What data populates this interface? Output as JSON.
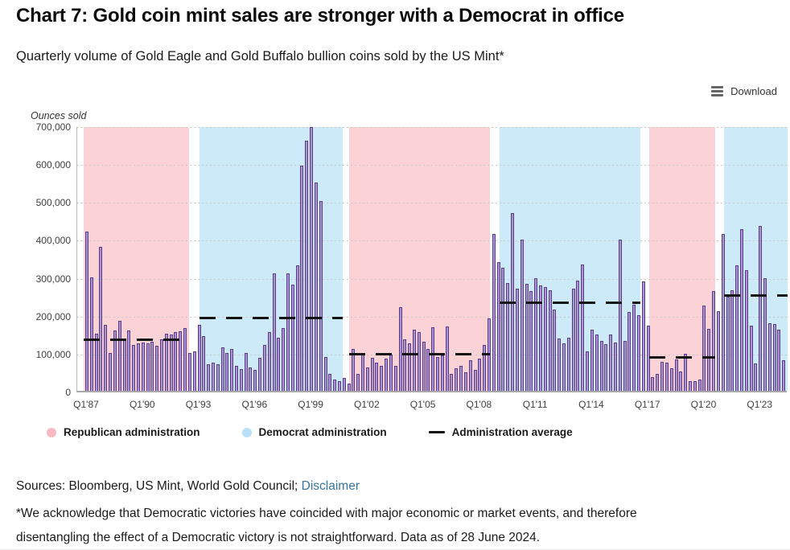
{
  "toolbar": {
    "download_label": "Download"
  },
  "footer": {
    "sources_prefix": "Sources: Bloomberg, US Mint, World Gold Council; ",
    "disclaimer_label": "Disclaimer",
    "footnote_line1": "*We acknowledge that Democratic victories have coincided with major economic or market events, and therefore",
    "footnote_line2": "disentangling the effect of a Democratic victory is not straightforward. Data as of 28 June 2024."
  },
  "chart_data": {
    "type": "bar",
    "title": "Chart 7: Gold coin mint sales are stronger with a Democrat in office",
    "subtitle": "Quarterly volume of Gold Eagle and Gold Buffalo bullion coins sold by the US Mint*",
    "ylabel": "Ounces sold",
    "ylim": [
      0,
      700000
    ],
    "ytick_step": 100000,
    "ytick_labels": [
      "0",
      "100,000",
      "200,000",
      "300,000",
      "400,000",
      "500,000",
      "600,000",
      "700,000"
    ],
    "xtick_labels": [
      "Q1'87",
      "Q1'90",
      "Q1'93",
      "Q1'96",
      "Q1'99",
      "Q1'02",
      "Q1'05",
      "Q1'08",
      "Q1'11",
      "Q1'14",
      "Q1'17",
      "Q1'20",
      "Q1'23"
    ],
    "xtick_every_quarters": 12,
    "start_label": "Q1'87",
    "end_label": "Q2'24",
    "grid": true,
    "legend_position": "bottom",
    "bar_color": "#a795cb",
    "bar_border_color": "#5d3b8c",
    "band_colors": {
      "Republican": "#fbd2d6",
      "Democrat": "#cdeaf8"
    },
    "values": [
      420000,
      300000,
      150000,
      380000,
      173000,
      100000,
      160000,
      185000,
      135000,
      160000,
      120000,
      125000,
      128000,
      125000,
      130000,
      118000,
      135000,
      150000,
      148000,
      155000,
      158000,
      165000,
      100000,
      105000,
      175000,
      145000,
      70000,
      75000,
      70000,
      115000,
      100000,
      110000,
      65000,
      58000,
      100000,
      62000,
      55000,
      88000,
      120000,
      155000,
      310000,
      140000,
      165000,
      310000,
      280000,
      330000,
      595000,
      660000,
      695000,
      550000,
      500000,
      90000,
      45000,
      30000,
      25000,
      35000,
      20000,
      110000,
      45000,
      95000,
      62000,
      88000,
      75000,
      65000,
      85000,
      95000,
      65000,
      220000,
      135000,
      125000,
      162000,
      155000,
      130000,
      110000,
      168000,
      89000,
      93000,
      170000,
      45000,
      60000,
      65000,
      48000,
      80000,
      55000,
      85000,
      120000,
      190000,
      413000,
      340000,
      325000,
      285000,
      468000,
      270000,
      398000,
      283000,
      263000,
      298000,
      277000,
      274000,
      265000,
      214000,
      137000,
      126000,
      139000,
      270000,
      291000,
      334000,
      105000,
      161000,
      148000,
      131000,
      124000,
      148000,
      127000,
      398000,
      131000,
      208000,
      226000,
      199000,
      289000,
      172000,
      37000,
      45000,
      77000,
      75000,
      60000,
      83000,
      51000,
      98000,
      26000,
      25000,
      30000,
      224000,
      163000,
      263000,
      210000,
      413000,
      248000,
      265000,
      331000,
      427000,
      318000,
      171000,
      73000,
      434000,
      296000,
      178000,
      176000,
      162000,
      80000
    ],
    "eras": [
      {
        "party": "Republican",
        "quarters": "Q1'87-Q4'92",
        "from_idx": -0.7,
        "to_idx": 21.8,
        "average": 140000
      },
      {
        "party": "Democrat",
        "quarters": "Q1'93-Q4'00",
        "from_idx": 24.0,
        "to_idx": 54.7,
        "average": 197000
      },
      {
        "party": "Republican",
        "quarters": "Q1'01-Q4'08",
        "from_idx": 56.1,
        "to_idx": 86.1,
        "average": 100000
      },
      {
        "party": "Democrat",
        "quarters": "Q1'09-Q4'16",
        "from_idx": 88.2,
        "to_idx": 118.3,
        "average": 237000
      },
      {
        "party": "Republican",
        "quarters": "Q1'17-Q3'20",
        "from_idx": 120.2,
        "to_idx": 134.3,
        "average": 92000
      },
      {
        "party": "Democrat",
        "quarters": "Q1'21-Q2'24",
        "from_idx": 136.2,
        "to_idx": 149.9,
        "average": 255000
      }
    ],
    "legend": [
      {
        "label": "Republican administration",
        "swatch": "circle",
        "color": "#f8b9c3"
      },
      {
        "label": "Democrat administration",
        "swatch": "circle",
        "color": "#b9e0f6"
      },
      {
        "label": "Administration average",
        "swatch": "dash",
        "color": "#111111"
      }
    ]
  }
}
